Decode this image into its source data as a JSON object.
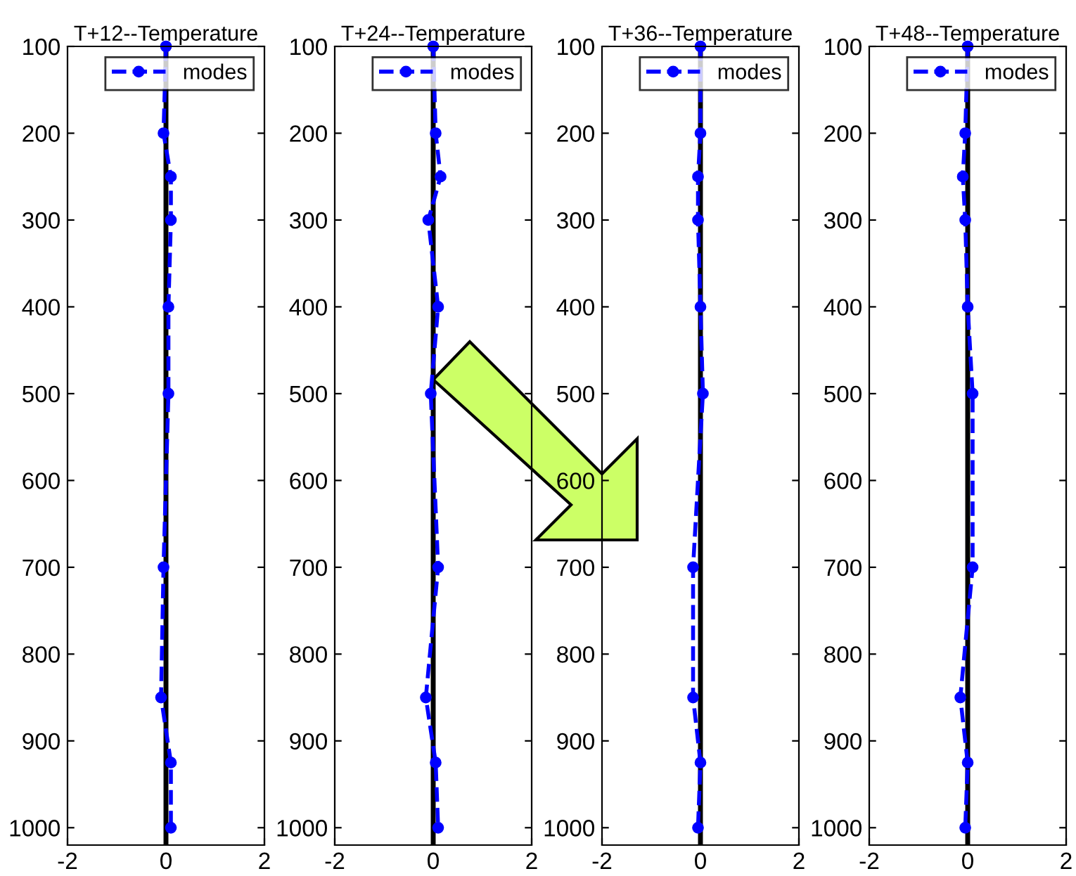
{
  "chart_data": [
    {
      "type": "line",
      "title": "T+12--Temperature",
      "x": [
        0,
        -0.05,
        0.1,
        0.1,
        0.05,
        0.05,
        -0.05,
        -0.1,
        0.1,
        0.1
      ],
      "series": [
        {
          "name": "modes",
          "color": "#0000ff",
          "values": [
            100,
            200,
            250,
            300,
            400,
            500,
            700,
            850,
            925,
            1000
          ]
        }
      ],
      "xlim": [
        -2,
        2
      ],
      "xticks": [
        -2,
        0,
        2
      ],
      "ylim": [
        1020,
        100
      ],
      "yticks": [
        100,
        200,
        300,
        400,
        500,
        600,
        700,
        800,
        900,
        1000
      ],
      "ref_lines": [
        {
          "axis": "x",
          "value": 0,
          "color": "#000000"
        }
      ],
      "legend": "top right",
      "marker": "circle",
      "line_style": "dashed"
    },
    {
      "type": "line",
      "title": "T+24--Temperature",
      "x": [
        0,
        0.05,
        0.15,
        -0.1,
        0.1,
        -0.05,
        0.1,
        -0.15,
        0.05,
        0.1
      ],
      "series": [
        {
          "name": "modes",
          "color": "#0000ff",
          "values": [
            100,
            200,
            250,
            300,
            400,
            500,
            700,
            850,
            925,
            1000
          ]
        }
      ],
      "xlim": [
        -2,
        2
      ],
      "xticks": [
        -2,
        0,
        2
      ],
      "ylim": [
        1020,
        100
      ],
      "yticks": [
        100,
        200,
        300,
        400,
        500,
        600,
        700,
        800,
        900,
        1000
      ],
      "ref_lines": [
        {
          "axis": "x",
          "value": 0,
          "color": "#000000"
        }
      ],
      "legend": "top right",
      "marker": "circle",
      "line_style": "dashed"
    },
    {
      "type": "line",
      "title": "T+36--Temperature",
      "x": [
        0,
        0,
        -0.05,
        -0.05,
        0,
        0.05,
        -0.15,
        -0.15,
        0,
        -0.05
      ],
      "series": [
        {
          "name": "modes",
          "color": "#0000ff",
          "values": [
            100,
            200,
            250,
            300,
            400,
            500,
            700,
            850,
            925,
            1000
          ]
        }
      ],
      "xlim": [
        -2,
        2
      ],
      "xticks": [
        -2,
        0,
        2
      ],
      "ylim": [
        1020,
        100
      ],
      "yticks": [
        100,
        200,
        300,
        400,
        500,
        600,
        700,
        800,
        900,
        1000
      ],
      "ref_lines": [
        {
          "axis": "x",
          "value": 0,
          "color": "#000000"
        }
      ],
      "legend": "top right",
      "marker": "circle",
      "line_style": "dashed"
    },
    {
      "type": "line",
      "title": "T+48--Temperature",
      "x": [
        0,
        -0.05,
        -0.1,
        -0.05,
        0,
        0.1,
        0.1,
        -0.15,
        0,
        -0.05
      ],
      "series": [
        {
          "name": "modes",
          "color": "#0000ff",
          "values": [
            100,
            200,
            250,
            300,
            400,
            500,
            700,
            850,
            925,
            1000
          ]
        }
      ],
      "xlim": [
        -2,
        2
      ],
      "xticks": [
        -2,
        0,
        2
      ],
      "ylim": [
        1020,
        100
      ],
      "yticks": [
        100,
        200,
        300,
        400,
        500,
        600,
        700,
        800,
        900,
        1000
      ],
      "ref_lines": [
        {
          "axis": "x",
          "value": 0,
          "color": "#000000"
        }
      ],
      "legend": "top right",
      "marker": "circle",
      "line_style": "dashed"
    }
  ]
}
